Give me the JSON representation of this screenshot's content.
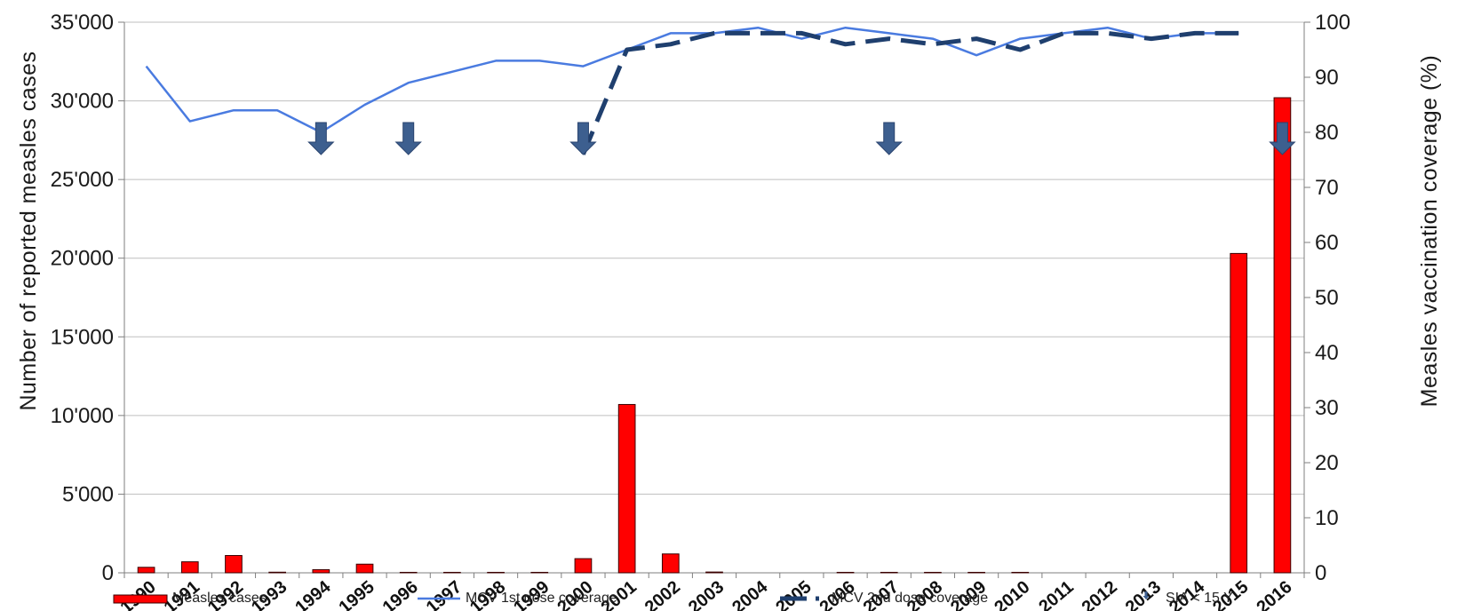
{
  "chart_data": {
    "type": "bar",
    "title": "",
    "categories": [
      "1990",
      "1991",
      "1992",
      "1993",
      "1994",
      "1995",
      "1996",
      "1997",
      "1998",
      "1999",
      "2000",
      "2001",
      "2002",
      "2003",
      "2004",
      "2005",
      "2006",
      "2007",
      "2008",
      "2009",
      "2010",
      "2011",
      "2012",
      "2013",
      "2014",
      "2015",
      "2016"
    ],
    "ylabel": "Number of reported measles cases",
    "y2label": "Measles vaccination coverage (%)",
    "ylim": [
      0,
      35000
    ],
    "y2lim": [
      0,
      100
    ],
    "yticks": [
      "0",
      "5'000",
      "10'000",
      "15'000",
      "20'000",
      "25'000",
      "30'000",
      "35'000"
    ],
    "y2ticks": [
      "0",
      "10",
      "20",
      "30",
      "40",
      "50",
      "60",
      "70",
      "80",
      "90",
      "100"
    ],
    "grid": true,
    "legend_position": "bottom",
    "series": [
      {
        "name": "Measles cases",
        "type": "bar",
        "axis": "left",
        "color": "#ff0000",
        "values": [
          350,
          700,
          1100,
          40,
          200,
          550,
          30,
          30,
          30,
          30,
          900,
          10700,
          1200,
          50,
          0,
          0,
          30,
          30,
          30,
          30,
          30,
          0,
          0,
          0,
          0,
          20300,
          30200
        ]
      },
      {
        "name": "MCV 1st dose coverage",
        "type": "line",
        "axis": "right",
        "color": "#4a7be0",
        "values": [
          92,
          82,
          84,
          84,
          80,
          85,
          89,
          91,
          93,
          93,
          92,
          95,
          98,
          98,
          99,
          97,
          99,
          98,
          97,
          94,
          97,
          98,
          99,
          97,
          98,
          98,
          null
        ]
      },
      {
        "name": "MCV 2nd dose coverage",
        "type": "line",
        "axis": "right",
        "style": "dashed",
        "color": "#1f3f6e",
        "values": [
          null,
          null,
          null,
          null,
          null,
          null,
          null,
          null,
          null,
          null,
          76,
          95,
          96,
          98,
          98,
          98,
          96,
          97,
          96,
          97,
          95,
          98,
          98,
          97,
          98,
          98,
          null
        ]
      },
      {
        "name": "SIA < 15 Y",
        "type": "marker",
        "marker": "down-arrow",
        "color": "#3d5f8f",
        "years": [
          "1994",
          "1996",
          "2000",
          "2007",
          "2016"
        ]
      }
    ]
  }
}
